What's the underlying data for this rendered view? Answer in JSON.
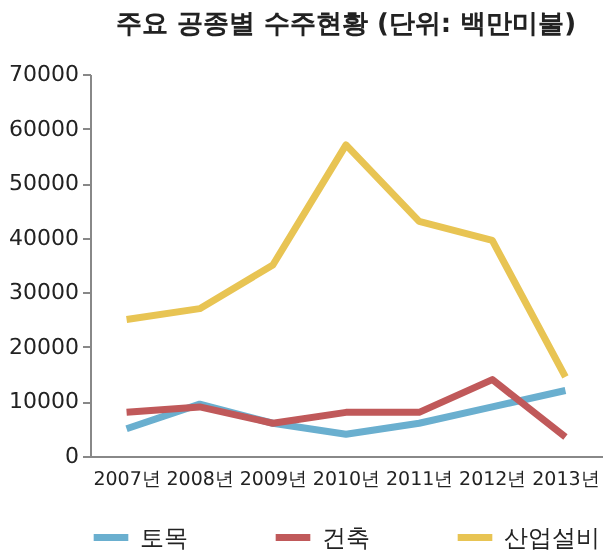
{
  "chart_data": {
    "type": "line",
    "title": "주요 공종별 수주현황 (단위: 백만미불)",
    "categories": [
      "2007년",
      "2008년",
      "2009년",
      "2010년",
      "2011년",
      "2012년",
      "2013년"
    ],
    "series": [
      {
        "name": "토목",
        "color": "#6aafcf",
        "values": [
          5000,
          9500,
          6000,
          4000,
          6000,
          9000,
          12000
        ]
      },
      {
        "name": "건축",
        "color": "#c0595a",
        "values": [
          8000,
          9000,
          6000,
          8000,
          8000,
          14000,
          3500
        ]
      },
      {
        "name": "산업설비",
        "color": "#e8c453",
        "values": [
          25000,
          27000,
          35000,
          57000,
          43000,
          39500,
          14500
        ]
      }
    ],
    "ylim": [
      0,
      70000
    ],
    "yticks": [
      0,
      10000,
      20000,
      30000,
      40000,
      50000,
      60000,
      70000
    ],
    "grid": false,
    "legend": "bottom",
    "marker": "none",
    "line_style": "solid"
  }
}
